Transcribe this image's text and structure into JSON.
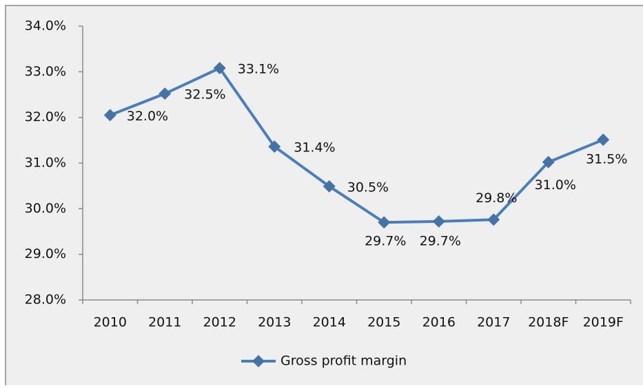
{
  "chart_data": {
    "type": "line",
    "categories": [
      "2010",
      "2011",
      "2012",
      "2013",
      "2014",
      "2015",
      "2016",
      "2017",
      "2018F",
      "2019F"
    ],
    "series": [
      {
        "name": "Gross profit margin",
        "color": "#4a7ebb",
        "values": [
          32.05,
          32.52,
          33.08,
          31.36,
          30.49,
          29.7,
          29.72,
          29.76,
          31.02,
          31.51
        ],
        "value_labels": [
          "32.0%",
          "32.5%",
          "33.1%",
          "31.4%",
          "30.5%",
          "29.7%",
          "29.7%",
          "29.8%",
          "31.0%",
          "31.5%"
        ]
      }
    ],
    "ylim": [
      28,
      34
    ],
    "yticks": [
      {
        "value": 28,
        "label": "28.0%"
      },
      {
        "value": 29,
        "label": "29.0%"
      },
      {
        "value": 30,
        "label": "30.0%"
      },
      {
        "value": 31,
        "label": "31.0%"
      },
      {
        "value": 32,
        "label": "32.0%"
      },
      {
        "value": 33,
        "label": "33.0%"
      },
      {
        "value": 34,
        "label": "34.0%"
      }
    ],
    "grid": false,
    "legend": "bottom"
  }
}
